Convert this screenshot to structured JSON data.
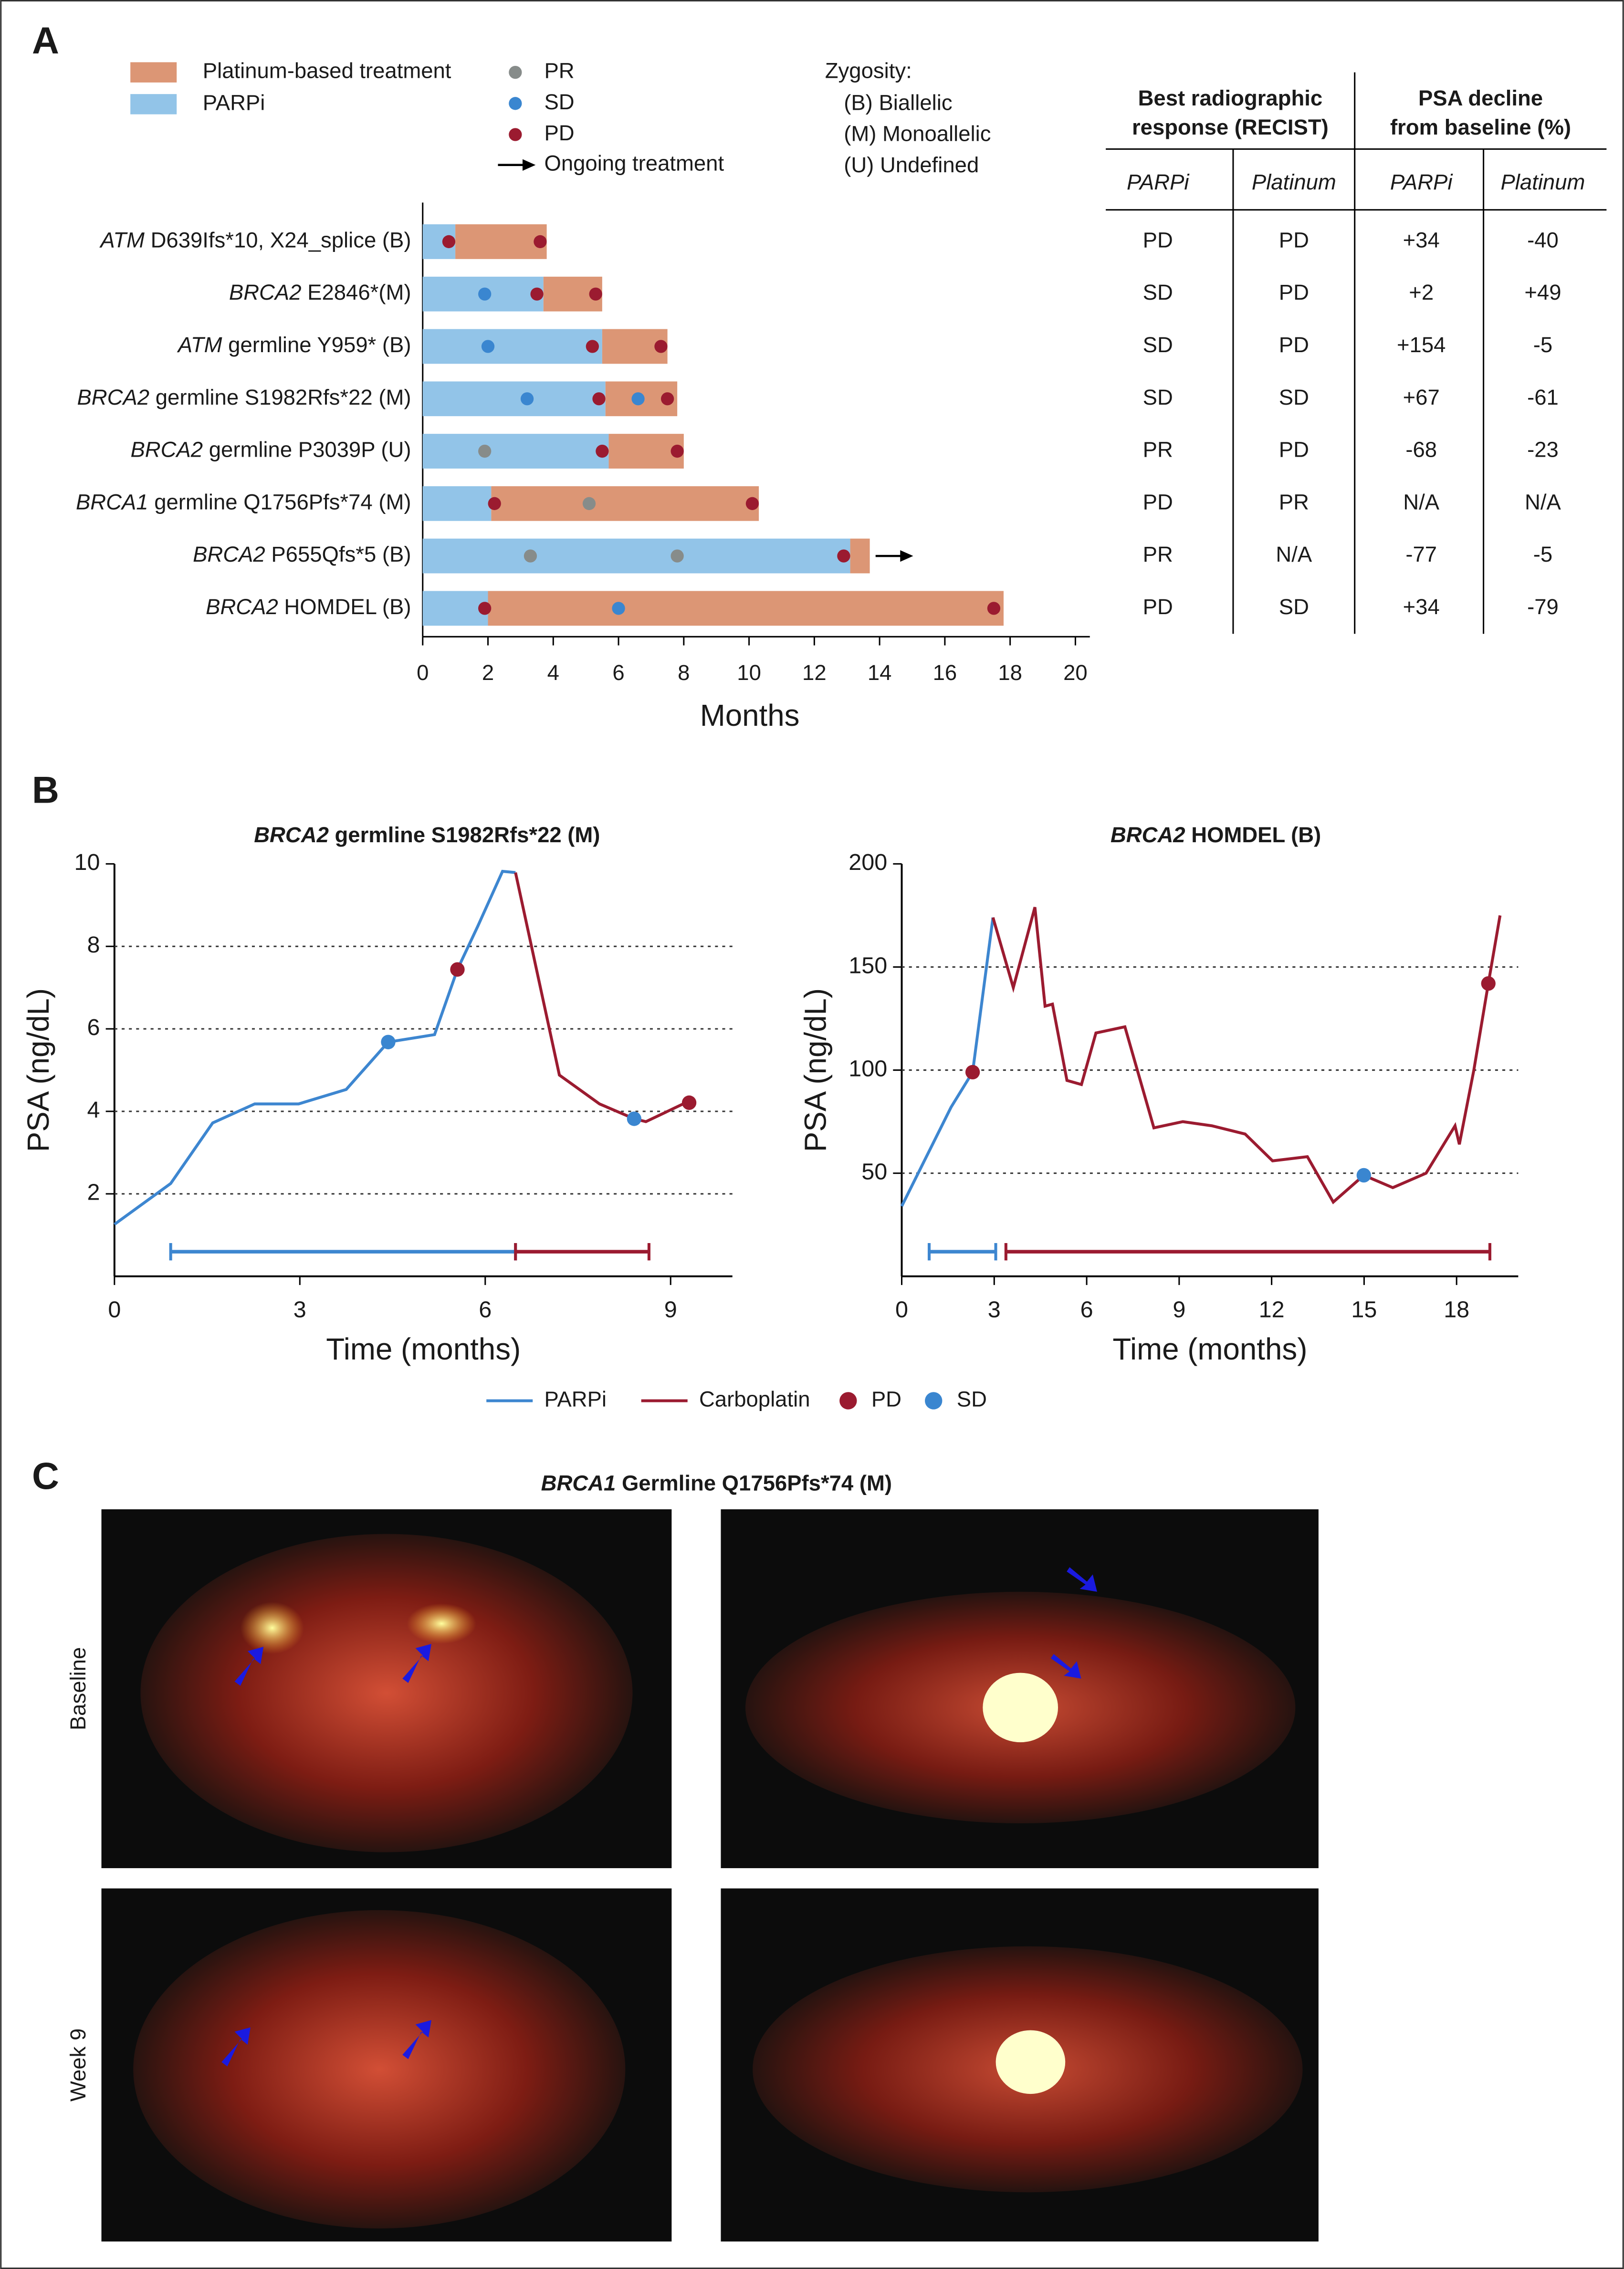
{
  "panels": [
    "A",
    "B",
    "C"
  ],
  "chart_data": [
    {
      "type": "swimmer",
      "categories": [
        {
          "gene": "ATM",
          "variant": "D639Ifs*10, X24_splice (B)"
        },
        {
          "gene": "BRCA2",
          "variant": "E2846*(M)"
        },
        {
          "gene": "ATM",
          "variant": "germline Y959* (B)"
        },
        {
          "gene": "BRCA2",
          "variant": "germline S1982Rfs*22 (M)"
        },
        {
          "gene": "BRCA2",
          "variant": "germline P3039P (U)"
        },
        {
          "gene": "BRCA1",
          "variant": "germline Q1756Pfs*74 (M)"
        },
        {
          "gene": "BRCA2",
          "variant": "P655Qfs*5 (B)"
        },
        {
          "gene": "BRCA2",
          "variant": "HOMDEL (B)"
        }
      ],
      "series": [
        {
          "name": "PARPi",
          "color": "#92c4e8",
          "values": [
            1.0,
            3.7,
            5.5,
            5.6,
            5.7,
            2.1,
            13.1,
            2.0
          ]
        },
        {
          "name": "Platinum-based treatment",
          "color": "#dc9675",
          "values": [
            2.8,
            1.8,
            2.0,
            2.2,
            2.3,
            8.2,
            0.6,
            15.8
          ]
        }
      ],
      "points": [
        {
          "name": "PR",
          "color": "#878c8a",
          "x": [
            1.9,
            5.1,
            3.3,
            7.8
          ],
          "rows": [
            4,
            5,
            6,
            6
          ]
        },
        {
          "name": "SD",
          "color": "#3a86d0",
          "x": [
            1.9,
            2.0,
            3.2,
            6.6,
            6.0
          ],
          "rows": [
            1,
            2,
            3,
            3,
            7
          ]
        },
        {
          "name": "PD",
          "color": "#9b1b30",
          "x": [
            0.8,
            3.6,
            3.5,
            5.3,
            5.2,
            7.3,
            5.4,
            7.5,
            5.5,
            7.8,
            2.2,
            10.1,
            12.9,
            1.9,
            17.5
          ],
          "rows": [
            0,
            0,
            1,
            1,
            2,
            2,
            3,
            3,
            4,
            4,
            5,
            5,
            6,
            7,
            7
          ]
        }
      ],
      "ongoing": {
        "label": "Ongoing treatment",
        "rows": [
          6
        ]
      },
      "zygosity": {
        "title": "Zygosity:",
        "labels": [
          "(B) Biallelic",
          "(M) Monoallelic",
          "(U) Undefined"
        ]
      },
      "xlim": [
        0,
        20
      ],
      "xticks": [
        0,
        2,
        4,
        6,
        8,
        10,
        12,
        14,
        16,
        18,
        20
      ],
      "xlabel": "Months"
    },
    {
      "type": "line",
      "title_italic": "BRCA2",
      "title": "germline S1982Rfs*22 (M)",
      "series": [
        {
          "name": "PARPi",
          "color": "#3d86d0",
          "x": [
            0,
            0.91,
            1.59,
            2.27,
            2.98,
            3.75,
            4.43,
            5.18,
            5.55,
            5.88,
            6.28,
            6.49
          ],
          "values": [
            1.26,
            2.25,
            3.72,
            4.18,
            4.18,
            4.53,
            5.68,
            5.86,
            7.44,
            8.49,
            9.82,
            9.79
          ],
          "span": [
            0.91,
            6.49
          ]
        },
        {
          "name": "Carboplatin",
          "color": "#9b1b30",
          "x": [
            6.49,
            7.2,
            7.85,
            8.41,
            8.6,
            9.3
          ],
          "values": [
            9.79,
            4.88,
            4.18,
            3.82,
            3.75,
            4.25
          ],
          "span": [
            6.49,
            8.65
          ]
        }
      ],
      "points": [
        {
          "name": "PD",
          "color": "#9b1b30",
          "x": [
            5.55,
            9.3
          ],
          "values": [
            7.44,
            4.21
          ]
        },
        {
          "name": "SD",
          "color": "#3a86d0",
          "x": [
            4.43,
            8.41
          ],
          "values": [
            5.68,
            3.82
          ]
        }
      ],
      "xlim": [
        0,
        10
      ],
      "xticks": [
        0,
        3,
        6,
        9
      ],
      "ylim": [
        0,
        10
      ],
      "yticks": [
        2,
        4,
        6,
        8,
        10
      ],
      "grid": true,
      "xlabel": "Time (months)",
      "ylabel": "PSA (ng/dL)"
    },
    {
      "type": "line",
      "title_italic": "BRCA2",
      "title": "HOMDEL (B)",
      "series": [
        {
          "name": "PARPi",
          "color": "#3d86d0",
          "x": [
            0,
            1.6,
            2.3,
            2.96
          ],
          "values": [
            34,
            82,
            99,
            174
          ],
          "span": [
            0.89,
            3.05
          ]
        },
        {
          "name": "Carboplatin",
          "color": "#9b1b30",
          "x": [
            2.96,
            3.62,
            4.32,
            4.65,
            4.89,
            5.36,
            5.83,
            6.3,
            7.24,
            8.18,
            9.12,
            10.06,
            11.14,
            12.03,
            13.16,
            14.0,
            14.99,
            15.93,
            17.01,
            17.95,
            18.09,
            18.56,
            19.03,
            19.41
          ],
          "values": [
            174,
            140,
            179,
            131,
            132,
            95,
            93,
            118,
            121,
            72,
            75,
            73,
            69,
            56,
            58,
            36,
            49,
            43,
            50,
            73,
            64,
            100,
            142,
            175
          ],
          "span": [
            3.38,
            19.08
          ]
        }
      ],
      "points": [
        {
          "name": "PD",
          "color": "#9b1b30",
          "x": [
            2.3,
            19.03
          ],
          "values": [
            99,
            142
          ]
        },
        {
          "name": "SD",
          "color": "#3a86d0",
          "x": [
            14.99
          ],
          "values": [
            49
          ]
        }
      ],
      "xlim": [
        0,
        20
      ],
      "xticks": [
        0,
        3,
        6,
        9,
        12,
        15,
        18
      ],
      "ylim": [
        0,
        200
      ],
      "yticks": [
        50,
        100,
        150,
        200
      ],
      "grid": true,
      "xlabel": "Time (months)",
      "ylabel": "PSA (ng/dL)"
    }
  ],
  "table": {
    "headers": [
      "Best radiographic response (RECIST)",
      "PSA decline from baseline (%)"
    ],
    "subheaders": [
      "PARPi",
      "Platinum",
      "PARPi",
      "Platinum"
    ],
    "rows": [
      [
        "PD",
        "PD",
        "+34",
        "-40"
      ],
      [
        "SD",
        "PD",
        "+2",
        "+49"
      ],
      [
        "SD",
        "PD",
        "+154",
        "-5"
      ],
      [
        "SD",
        "SD",
        "+67",
        "-61"
      ],
      [
        "PR",
        "PD",
        "-68",
        "-23"
      ],
      [
        "PD",
        "PR",
        "N/A",
        "N/A"
      ],
      [
        "PR",
        "N/A",
        "-77",
        "-5"
      ],
      [
        "PD",
        "SD",
        "+34",
        "-79"
      ]
    ]
  },
  "panel_c": {
    "title_italic": "BRCA1",
    "title": "Germline Q1756Pfs*74 (M)",
    "rows": [
      "Baseline",
      "Week 9"
    ]
  }
}
